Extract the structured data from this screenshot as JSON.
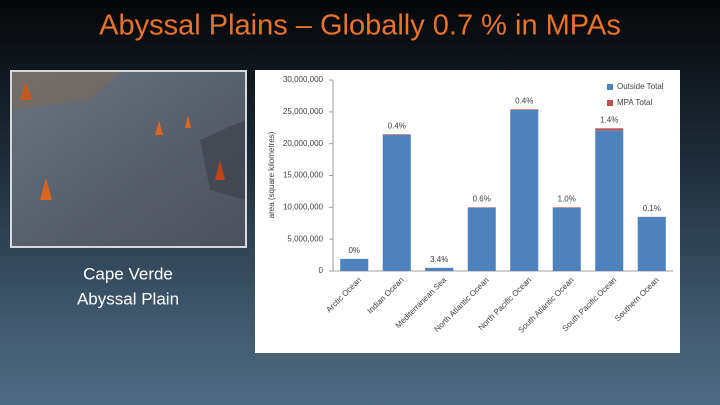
{
  "slide": {
    "title": "Abyssal Plains – Globally 0.7 % in MPAs",
    "caption": [
      "Cape Verde",
      "Abyssal Plain"
    ]
  },
  "chart_data": {
    "type": "stacked-bar",
    "y_label": "area (square kilometres)",
    "categories": [
      "Arctic Ocean",
      "Indian Ocean",
      "Mediterranean Sea",
      "North Atlantic Ocean",
      "North Pacific Ocean",
      "South Atlantic Ocean",
      "South Pacific Ocean",
      "Southern Ocean"
    ],
    "series": [
      {
        "name": "Outside Total",
        "color": "#4f81bd",
        "values": [
          1900000,
          21400000,
          480000,
          9950000,
          25300000,
          9900000,
          22100000,
          8500000
        ]
      },
      {
        "name": "MPA Total",
        "color": "#c0504d",
        "values": [
          0,
          86000,
          17000,
          60000,
          100000,
          100000,
          315000,
          8500
        ]
      }
    ],
    "percent_in_mpa": [
      0,
      0.4,
      3.4,
      0.6,
      0.4,
      1.0,
      1.4,
      0.1
    ],
    "percent_in_mpa_labels": [
      "0%",
      "0.4%",
      "3.4%",
      "0.6%",
      "0.4%",
      "1.0%",
      "1.4%",
      "0.1%"
    ],
    "ylim": [
      0,
      30000000
    ],
    "yticks": [
      0,
      {
        "value": 5000000,
        "label": "5,000,000"
      },
      {
        "value": 10000000,
        "label": "10,000,000"
      },
      {
        "value": 15000000,
        "label": "15,000,000"
      },
      {
        "value": 20000000,
        "label": "20,000,000"
      },
      {
        "value": 25000000,
        "label": "25,000,000"
      },
      {
        "value": 30000000,
        "label": "30,000,000"
      }
    ],
    "legend": "top-right"
  }
}
